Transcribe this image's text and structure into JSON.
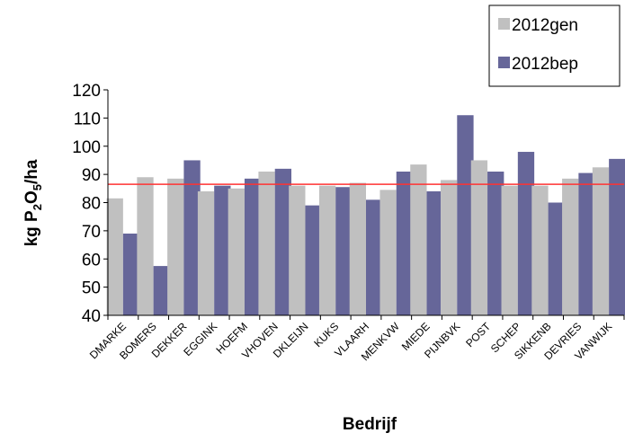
{
  "chart_data": {
    "type": "bar",
    "title": "",
    "xlabel": "Bedrijf",
    "ylabel_parts": {
      "a": "kg P",
      "sub1": "2",
      "b": "O",
      "sub2": "5",
      "c": "/ha"
    },
    "ylim": [
      40,
      120
    ],
    "yticks": [
      40,
      50,
      60,
      70,
      80,
      90,
      100,
      110,
      120
    ],
    "categories": [
      "DMARKE",
      "BOMERS",
      "DEKKER",
      "EGGINK",
      "HOEFM",
      "VHOVEN",
      "DKLEIJN",
      "KUKS",
      "VLAARH",
      "MENKVW",
      "MIEDE",
      "PIJNBVK",
      "POST",
      "SCHEP",
      "SIKKENB",
      "DEVRIES",
      "VANWIJK"
    ],
    "series": [
      {
        "name": "2012gen",
        "color": "#c0c0c0",
        "values": [
          81.5,
          89,
          88.5,
          84,
          85,
          91,
          86,
          86,
          87,
          84.5,
          93.5,
          88,
          95,
          86,
          86,
          88.5,
          92.5
        ]
      },
      {
        "name": "2012bep",
        "color": "#666699",
        "values": [
          69,
          57.5,
          95,
          86,
          88.5,
          92,
          79,
          85.5,
          81,
          91,
          84,
          111,
          91,
          98,
          80,
          90.5,
          95.5
        ]
      }
    ],
    "reference_line": {
      "value": 86.5,
      "color": "#ff3333"
    },
    "grid": false,
    "legend": "top-right"
  }
}
